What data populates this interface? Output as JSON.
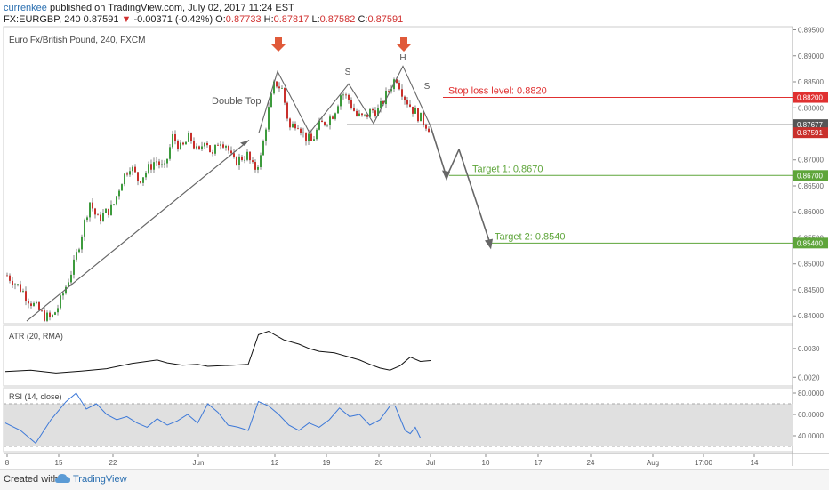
{
  "header": {
    "user": "currenkee",
    "published": " published on TradingView.com, July 02, 2017 11:24 EST",
    "symbol_line_start": "FX:EURGBP, 240  0.87591 ",
    "arrow": "▼",
    "change": " -0.00371 (-0.42%) ",
    "o_label": "O:",
    "o_val": "0.87733",
    "h_label": " H:",
    "h_val": "0.87817",
    "l_label": " L:",
    "l_val": "0.87582",
    "c_label": " C:",
    "c_val": "0.87591"
  },
  "panels": {
    "main_title": "Euro Fx/British Pound, 240, FXCM",
    "atr_title": "ATR (20, RMA)",
    "rsi_title": "RSI (14, close)"
  },
  "footer": {
    "created": "Created with",
    "brand": "TradingView"
  },
  "colors": {
    "up": "#3d9b3d",
    "down": "#c9302c",
    "sl": "#e03030",
    "target": "#5ea53a",
    "rsi": "#3c78d8",
    "arrow": "#e05a3a"
  },
  "chart_data": [
    {
      "type": "candlestick",
      "title": "Euro Fx/British Pound, 240, FXCM",
      "y_range": [
        0.8385,
        0.8956
      ],
      "y_ticks": [
        "0.89500",
        "0.89000",
        "0.88500",
        "0.88000",
        "0.87500",
        "0.87000",
        "0.86500",
        "0.86000",
        "0.85500",
        "0.85000",
        "0.84500",
        "0.84000"
      ],
      "x_ticks": [
        "8",
        "15",
        "22",
        "Jun",
        "12",
        "19",
        "26",
        "Jul",
        "10",
        "17",
        "24",
        "Aug",
        "17:00",
        "14"
      ],
      "close_path": [
        [
          "May 8",
          0.8478
        ],
        [
          "May 10",
          0.845
        ],
        [
          "May 11",
          0.843
        ],
        [
          "May 13",
          0.84
        ],
        [
          "May 14",
          0.8395
        ],
        [
          "May 15",
          0.842
        ],
        [
          "May 17",
          0.85
        ],
        [
          "May 18",
          0.856
        ],
        [
          "May 19",
          0.862
        ],
        [
          "May 20",
          0.8585
        ],
        [
          "May 22",
          0.861
        ],
        [
          "May 23",
          0.866
        ],
        [
          "May 24",
          0.869
        ],
        [
          "May 25",
          0.866
        ],
        [
          "May 27",
          0.87
        ],
        [
          "May 28",
          0.868
        ],
        [
          "May 29",
          0.8745
        ],
        [
          "May 30",
          0.872
        ],
        [
          "May 31",
          0.8745
        ],
        [
          "Jun 1",
          0.871
        ],
        [
          "Jun 2",
          0.8745
        ],
        [
          "Jun 3",
          0.8705
        ],
        [
          "Jun 4",
          0.874
        ],
        [
          "Jun 5",
          0.873
        ],
        [
          "Jun 6",
          0.8695
        ],
        [
          "Jun 8",
          0.871
        ],
        [
          "Jun 9",
          0.868
        ],
        [
          "Jun 10",
          0.8705
        ],
        [
          "Jun 11",
          0.879
        ],
        [
          "Jun 12",
          0.885
        ],
        [
          "Jun 13",
          0.8835
        ],
        [
          "Jun 14",
          0.876
        ],
        [
          "Jun 15",
          0.8775
        ],
        [
          "Jun 16",
          0.8745
        ],
        [
          "Jun 17",
          0.8735
        ],
        [
          "Jun 18",
          0.8765
        ],
        [
          "Jun 19",
          0.8775
        ],
        [
          "Jun 20",
          0.879
        ],
        [
          "Jun 21",
          0.883
        ],
        [
          "Jun 22",
          0.8815
        ],
        [
          "Jun 23",
          0.8785
        ],
        [
          "Jun 24",
          0.878
        ],
        [
          "Jun 25",
          0.8795
        ],
        [
          "Jun 26",
          0.8795
        ],
        [
          "Jun 27",
          0.883
        ],
        [
          "Jun 28",
          0.886
        ],
        [
          "Jun 29",
          0.882
        ],
        [
          "Jun 30",
          0.8795
        ],
        [
          "Jul 1",
          0.8759
        ]
      ],
      "current_price": "0.87591",
      "reference_price": "0.87677",
      "horizontal_levels": [
        {
          "label": "Stop loss level: 0.8820",
          "value": 0.882,
          "tag": "0.88200"
        },
        {
          "label": "Target 1: 0.8670",
          "value": 0.867,
          "tag": "0.86700"
        },
        {
          "label": "Target 2: 0.8540",
          "value": 0.854,
          "tag": "0.85400"
        }
      ],
      "annotations": [
        "Double Top",
        "S",
        "H",
        "S"
      ]
    },
    {
      "type": "line",
      "title": "ATR (20, RMA)",
      "y_ticks": [
        "0.0030",
        "0.0020"
      ],
      "series": [
        {
          "values": [
            [
              0,
              0.0022
            ],
            [
              5,
              0.00225
            ],
            [
              10,
              0.00215
            ],
            [
              15,
              0.00222
            ],
            [
              20,
              0.0023
            ],
            [
              25,
              0.00248
            ],
            [
              30,
              0.0026
            ],
            [
              32,
              0.0025
            ],
            [
              35,
              0.00242
            ],
            [
              38,
              0.00245
            ],
            [
              40,
              0.00238
            ],
            [
              45,
              0.00242
            ],
            [
              48,
              0.00245
            ],
            [
              50,
              0.00348
            ],
            [
              52,
              0.0036
            ],
            [
              55,
              0.0033
            ],
            [
              58,
              0.00315
            ],
            [
              60,
              0.003
            ],
            [
              62,
              0.0029
            ],
            [
              65,
              0.00285
            ],
            [
              68,
              0.0027
            ],
            [
              70,
              0.0026
            ],
            [
              72,
              0.00245
            ],
            [
              74,
              0.00232
            ],
            [
              76,
              0.00225
            ],
            [
              78,
              0.0024
            ],
            [
              80,
              0.0027
            ],
            [
              82,
              0.00255
            ],
            [
              84,
              0.00258
            ]
          ]
        }
      ]
    },
    {
      "type": "line",
      "title": "RSI (14, close)",
      "y_ticks": [
        "80.0000",
        "60.0000",
        "40.0000"
      ],
      "band": [
        30,
        70
      ],
      "series": [
        {
          "values": [
            [
              0,
              52
            ],
            [
              3,
              45
            ],
            [
              6,
              33
            ],
            [
              9,
              55
            ],
            [
              12,
              72
            ],
            [
              14,
              80
            ],
            [
              16,
              65
            ],
            [
              18,
              70
            ],
            [
              20,
              60
            ],
            [
              22,
              55
            ],
            [
              24,
              58
            ],
            [
              26,
              52
            ],
            [
              28,
              48
            ],
            [
              30,
              56
            ],
            [
              32,
              50
            ],
            [
              34,
              54
            ],
            [
              36,
              60
            ],
            [
              38,
              52
            ],
            [
              40,
              70
            ],
            [
              42,
              62
            ],
            [
              44,
              50
            ],
            [
              46,
              48
            ],
            [
              48,
              45
            ],
            [
              50,
              72
            ],
            [
              52,
              68
            ],
            [
              54,
              60
            ],
            [
              56,
              50
            ],
            [
              58,
              45
            ],
            [
              60,
              52
            ],
            [
              62,
              48
            ],
            [
              64,
              55
            ],
            [
              66,
              66
            ],
            [
              68,
              58
            ],
            [
              70,
              60
            ],
            [
              72,
              50
            ],
            [
              74,
              55
            ],
            [
              76,
              68
            ],
            [
              77,
              68
            ],
            [
              79,
              45
            ],
            [
              80,
              42
            ],
            [
              81,
              48
            ],
            [
              82,
              38
            ]
          ]
        }
      ]
    }
  ]
}
